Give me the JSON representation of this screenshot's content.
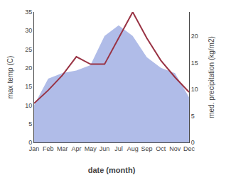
{
  "chart_data": {
    "type": "line",
    "categories": [
      "Jan",
      "Feb",
      "Mar",
      "Apr",
      "May",
      "Jun",
      "Jul",
      "Aug",
      "Sep",
      "Oct",
      "Nov",
      "Dec"
    ],
    "series": [
      {
        "type": "area",
        "axis": "y2",
        "color": "#b0bce8",
        "values": [
          7.0,
          12.0,
          13.0,
          13.5,
          14.5,
          20.0,
          22.0,
          20.0,
          16.0,
          14.0,
          13.0,
          8.5
        ]
      },
      {
        "type": "line",
        "color": "#993344",
        "values": [
          10.5,
          14.0,
          18.0,
          23.0,
          21.0,
          21.0,
          28.0,
          35.0,
          28.0,
          22.0,
          17.5,
          13.5
        ]
      }
    ],
    "xlabel": "date (month)",
    "ylabel": "max temp (C)",
    "y2label": "med. precipitation (kg/m2)",
    "ylim": [
      0,
      35
    ],
    "yticks": [
      0,
      5,
      10,
      15,
      20,
      25,
      30,
      35
    ],
    "y2lim": [
      0,
      24.5
    ],
    "y2ticks": [
      0,
      5,
      10,
      15,
      20
    ],
    "grid": false
  }
}
